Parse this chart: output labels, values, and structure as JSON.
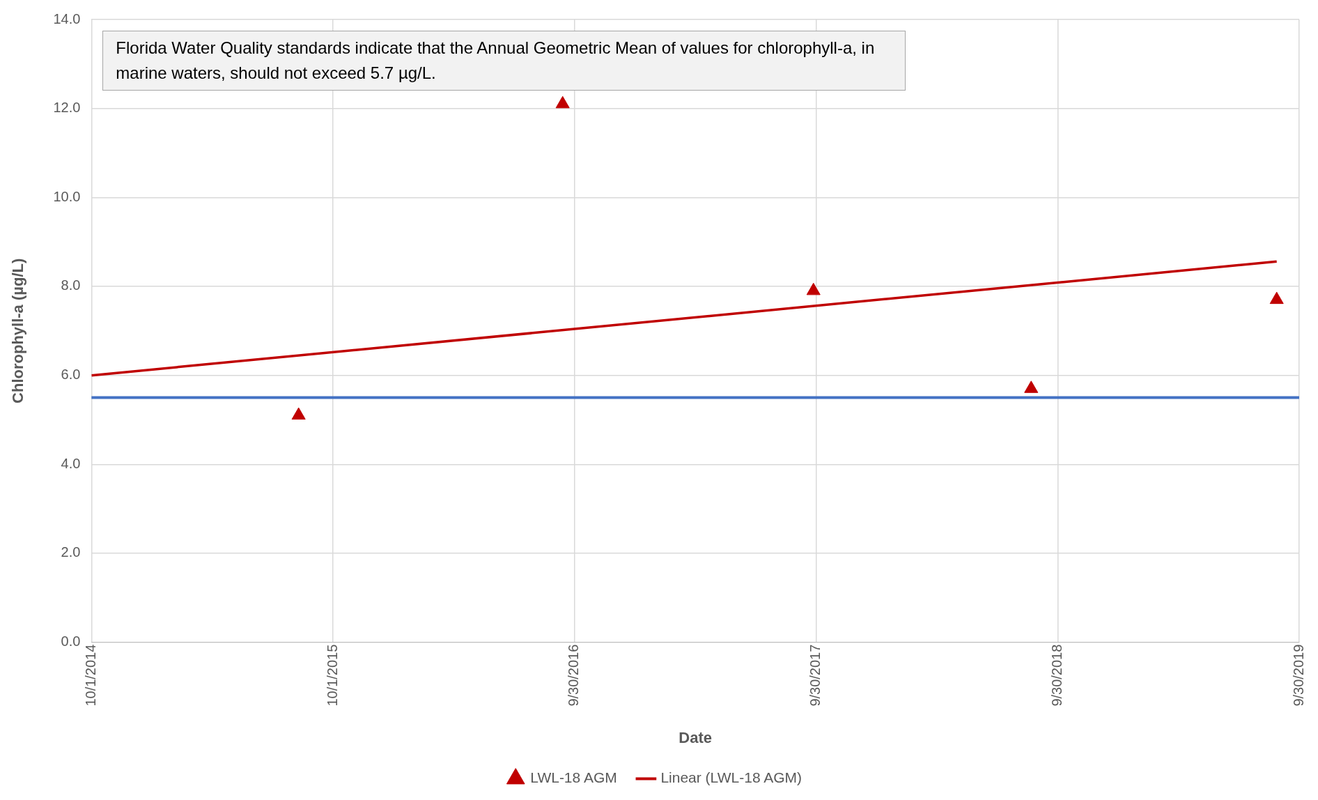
{
  "chart_data": {
    "type": "scatter",
    "xlabel": "Date",
    "ylabel": "Chlorophyll-a (µg/L)",
    "annotations": [
      "Florida Water Quality standards indicate that the Annual Geometric Mean of values for chlorophyll-a, in marine waters, should not exceed 5.7 µg/L."
    ],
    "series": [
      {
        "name": "LWL-18 AGM",
        "type": "scatter",
        "color": "#c00000",
        "marker": "triangle",
        "x": [
          "2015-08-10",
          "2016-09-12",
          "2017-09-26",
          "2018-08-21",
          "2019-08-27"
        ],
        "values": [
          5.1,
          12.1,
          7.9,
          5.7,
          7.7
        ]
      },
      {
        "name": "Linear (LWL-18 AGM)",
        "type": "line",
        "color": "#c00000",
        "marker": "none",
        "line_style": "solid",
        "x": [
          "2014-10-01",
          "2019-08-27"
        ],
        "values": [
          6.0,
          8.56
        ]
      }
    ],
    "ref_lines": [
      {
        "axis": "y",
        "value": 5.5,
        "color": "#4472c4",
        "line_style": "solid"
      }
    ],
    "xlim": [
      "2014-10-01",
      "2019-09-30"
    ],
    "xticks": [
      {
        "value": "2014-10-01",
        "label": "10/1/2014"
      },
      {
        "value": "2015-10-01",
        "label": "10/1/2015"
      },
      {
        "value": "2016-09-30",
        "label": "9/30/2016"
      },
      {
        "value": "2017-09-30",
        "label": "9/30/2017"
      },
      {
        "value": "2018-09-30",
        "label": "9/30/2018"
      },
      {
        "value": "2019-09-30",
        "label": "9/30/2019"
      }
    ],
    "ylim": [
      0,
      14
    ],
    "yticks": [
      {
        "value": 0,
        "label": "0.0"
      },
      {
        "value": 2,
        "label": "2.0"
      },
      {
        "value": 4,
        "label": "4.0"
      },
      {
        "value": 6,
        "label": "6.0"
      },
      {
        "value": 8,
        "label": "8.0"
      },
      {
        "value": 10,
        "label": "10.0"
      },
      {
        "value": 12,
        "label": "12.0"
      },
      {
        "value": 14,
        "label": "14.0"
      }
    ],
    "grid": true,
    "legend": "bottom"
  }
}
